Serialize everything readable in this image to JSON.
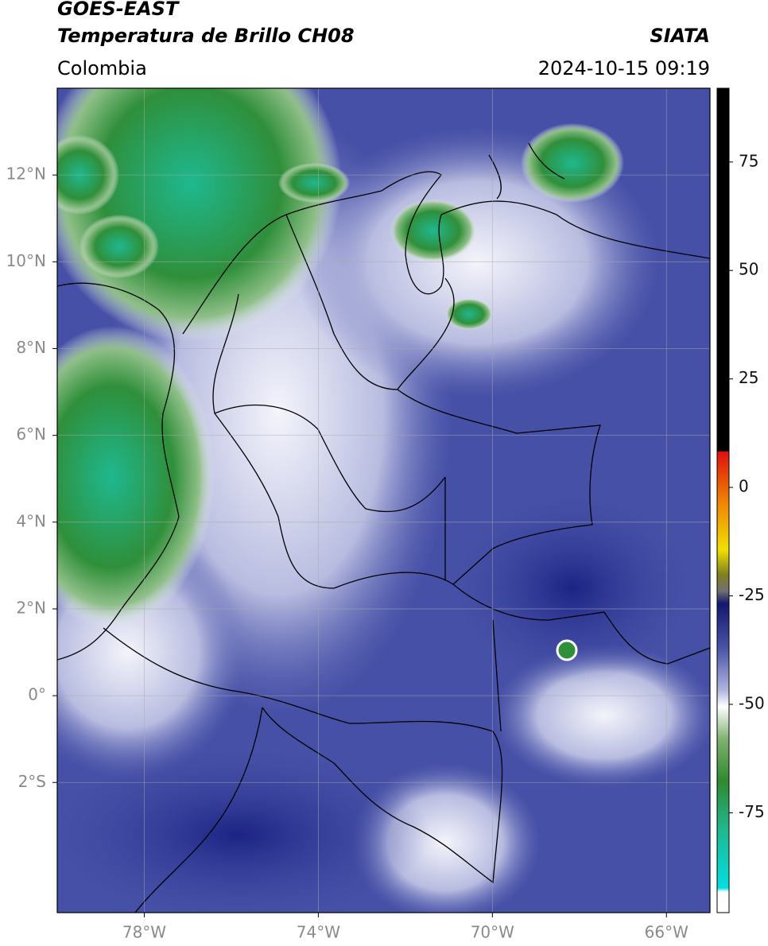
{
  "header": {
    "title": "GOES-EAST",
    "subtitle": "Temperatura de Brillo CH08",
    "source": "SIATA",
    "region": "Colombia",
    "datetime": "2024-10-15 09:19"
  },
  "map": {
    "xlim": [
      -80,
      -65
    ],
    "ylim": [
      -5,
      14
    ],
    "grid": true,
    "xticks": [
      {
        "value": -78,
        "label": "78°W"
      },
      {
        "value": -74,
        "label": "74°W"
      },
      {
        "value": -70,
        "label": "70°W"
      },
      {
        "value": -66,
        "label": "66°W"
      }
    ],
    "yticks": [
      {
        "value": 12,
        "label": "12°N"
      },
      {
        "value": 10,
        "label": "10°N"
      },
      {
        "value": 8,
        "label": "8°N"
      },
      {
        "value": 6,
        "label": "6°N"
      },
      {
        "value": 4,
        "label": "4°N"
      },
      {
        "value": 2,
        "label": "2°N"
      },
      {
        "value": 0,
        "label": "0°"
      },
      {
        "value": -2,
        "label": "2°S"
      }
    ]
  },
  "colorbar": {
    "lim": [
      -98,
      92
    ],
    "ticks": [
      75,
      50,
      25,
      0,
      -25,
      -50,
      -75
    ]
  }
}
